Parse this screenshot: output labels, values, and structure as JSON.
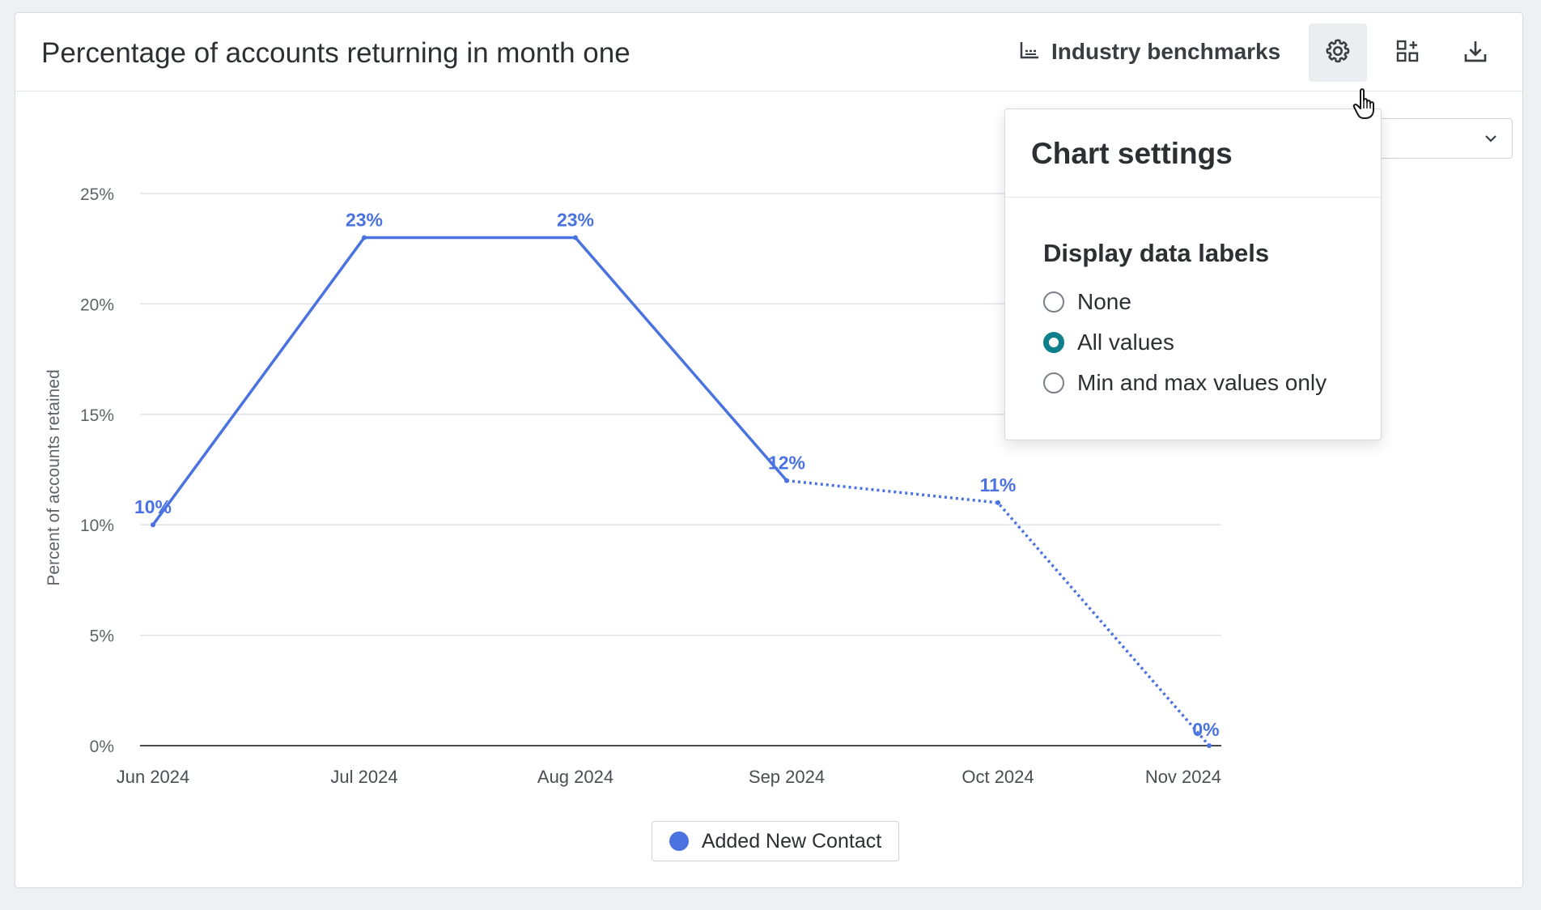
{
  "header": {
    "title": "Percentage of accounts returning in month one",
    "benchmarks_label": "Industry benchmarks",
    "icons": [
      "line-chart-icon",
      "gear-icon",
      "add-widget-icon",
      "download-icon"
    ]
  },
  "popover": {
    "title": "Chart settings",
    "section_title": "Display data labels",
    "options": [
      {
        "label": "None",
        "checked": false
      },
      {
        "label": "All values",
        "checked": true
      },
      {
        "label": "Min and max values only",
        "checked": false
      }
    ]
  },
  "legend": {
    "label": "Added New Contact",
    "color": "#4a72e0"
  },
  "colors": {
    "series": "#4a72e0",
    "radio_checked": "#0f7f8c",
    "grid": "#dfe2e7"
  },
  "chart_data": {
    "type": "line",
    "title": "Percentage of accounts returning in month one",
    "ylabel": "Percent of accounts retained",
    "xlabel": "",
    "categories": [
      "Jun 2024",
      "Jul 2024",
      "Aug 2024",
      "Sep 2024",
      "Oct 2024",
      "Nov 2024"
    ],
    "series": [
      {
        "name": "Added New Contact",
        "values": [
          10,
          23,
          23,
          12,
          11,
          0
        ],
        "labels": [
          "10%",
          "23%",
          "23%",
          "12%",
          "11%",
          "0%"
        ],
        "dotted_from_index": 3
      }
    ],
    "ylim": [
      0,
      25
    ],
    "yticks": [
      0,
      5,
      10,
      15,
      20,
      25
    ],
    "ytick_labels": [
      "0%",
      "5%",
      "10%",
      "15%",
      "20%",
      "25%"
    ],
    "grid": true,
    "legend_position": "bottom-center"
  }
}
